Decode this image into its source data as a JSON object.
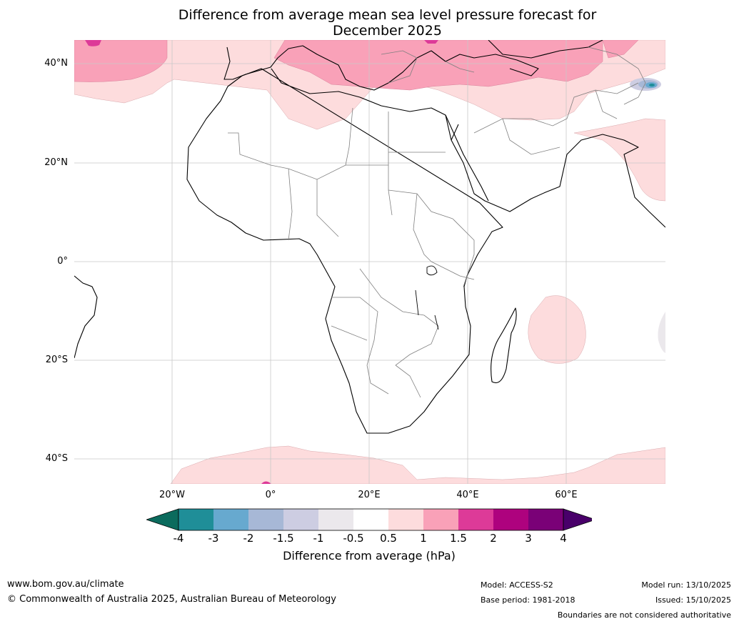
{
  "title_line1": "Difference from average mean sea level pressure forecast for",
  "title_line2": "December 2025",
  "lat_labels": [
    "40°N",
    "20°N",
    "0°",
    "20°S",
    "40°S"
  ],
  "lon_labels": [
    "20°W",
    "0°",
    "20°E",
    "40°E",
    "60°E"
  ],
  "colorbar": {
    "label": "Difference from average (hPa)",
    "ticks": [
      "-4",
      "-3",
      "-2",
      "-1.5",
      "-1",
      "-0.5",
      "0.5",
      "1",
      "1.5",
      "2",
      "3",
      "4"
    ],
    "colors": [
      "#0b6b5d",
      "#1f8e98",
      "#67a9cf",
      "#a7b8d6",
      "#cdcde2",
      "#ebe8ec",
      "#ffffff",
      "#fddcdd",
      "#f9a1b8",
      "#dd3a98",
      "#ae027e",
      "#7a0177",
      "#49006a"
    ]
  },
  "footer": {
    "website": "www.bom.gov.au/climate",
    "copyright": "© Commonwealth of Australia 2025, Australian Bureau of Meteorology",
    "model": "Model: ACCESS-S2",
    "base_period": "Base period: 1981-2018",
    "model_run": "Model run: 13/10/2025",
    "issued": "Issued: 15/10/2025",
    "disclaimer": "Boundaries are not considered authoritative"
  }
}
